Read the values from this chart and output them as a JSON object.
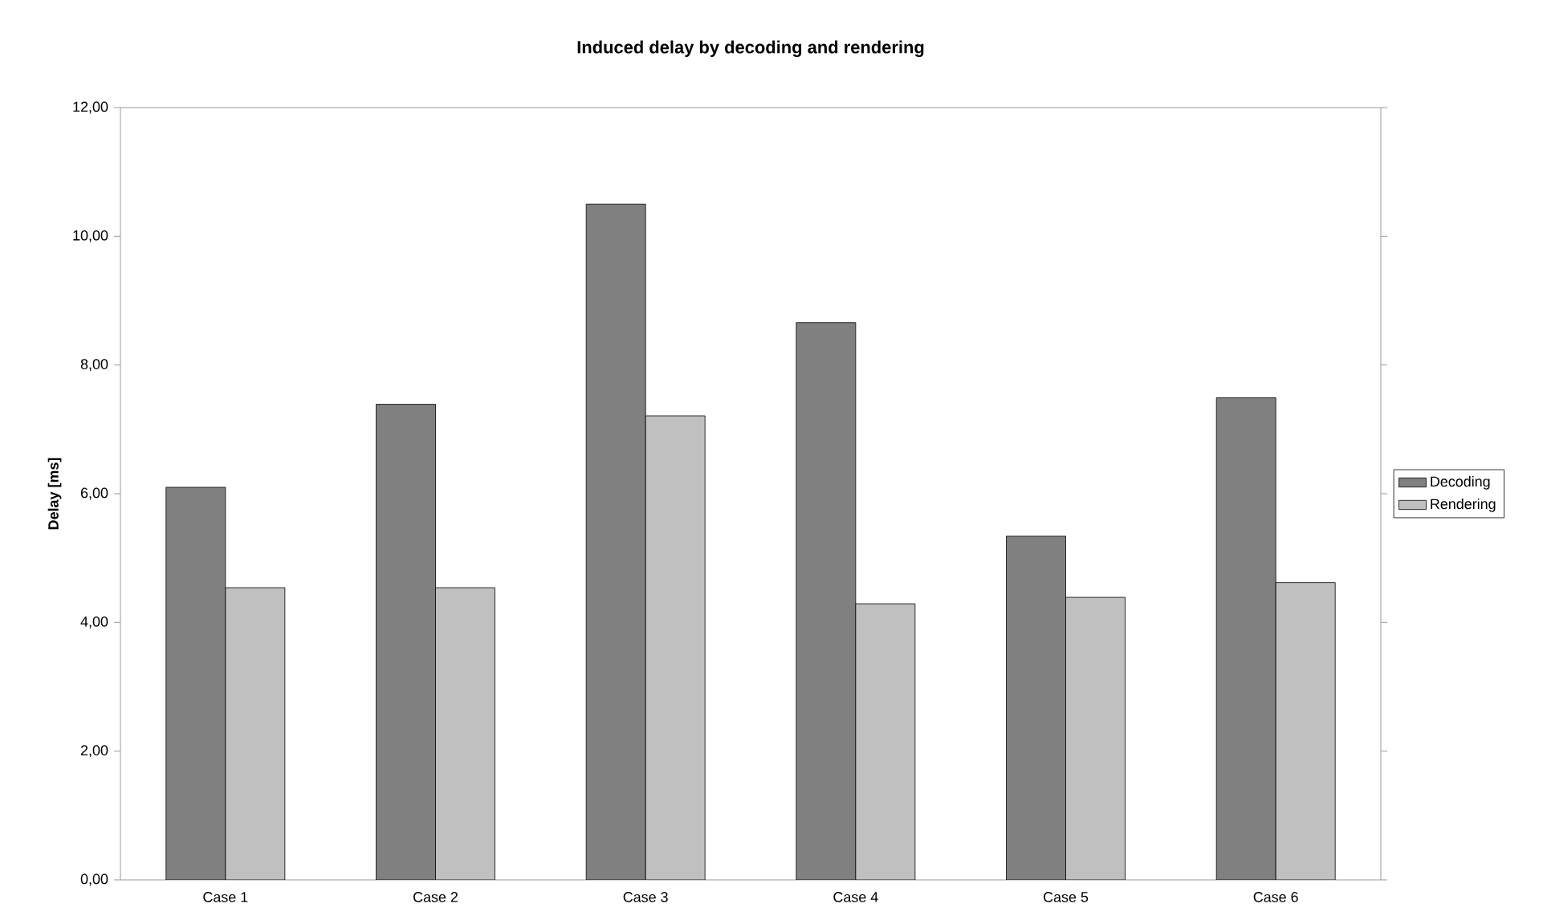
{
  "chart_data": {
    "type": "bar",
    "title": "Induced delay by decoding and rendering",
    "ylabel": "Delay [ms]",
    "categories": [
      "Case 1",
      "Case 2",
      "Case 3",
      "Case 4",
      "Case 5",
      "Case 6"
    ],
    "series": [
      {
        "name": "Decoding",
        "color": "#808080",
        "values": [
          6.1,
          7.39,
          10.5,
          8.66,
          5.34,
          7.49
        ]
      },
      {
        "name": "Rendering",
        "color": "#c0c0c0",
        "values": [
          4.54,
          4.54,
          7.21,
          4.29,
          4.39,
          4.62
        ]
      }
    ],
    "ylim": [
      0,
      12
    ],
    "yticks": [
      {
        "value": 0,
        "label": "0,00"
      },
      {
        "value": 2,
        "label": "2,00"
      },
      {
        "value": 4,
        "label": "4,00"
      },
      {
        "value": 6,
        "label": "6,00"
      },
      {
        "value": 8,
        "label": "8,00"
      },
      {
        "value": 10,
        "label": "10,00"
      },
      {
        "value": 12,
        "label": "12,00"
      }
    ],
    "legend": "right"
  }
}
